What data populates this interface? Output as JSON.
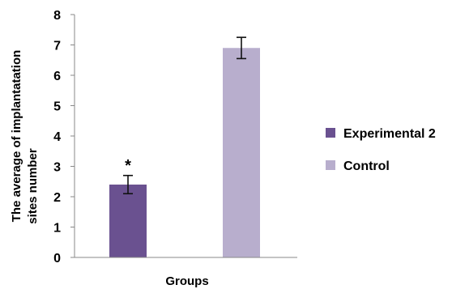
{
  "chart_data": {
    "type": "bar",
    "title": "",
    "xlabel": "Groups",
    "ylabel_line1": "The average of implantatation",
    "ylabel_line2": "sites  number",
    "ylim": [
      0,
      8
    ],
    "yticks": [
      "0",
      "1",
      "2",
      "3",
      "4",
      "5",
      "6",
      "7",
      "8"
    ],
    "grid": false,
    "legend_position": "right",
    "series": [
      {
        "name": "Experimental 2",
        "value": 2.4,
        "error": 0.3,
        "color": "#6a5190",
        "annotation": "*"
      },
      {
        "name": "Control",
        "value": 6.9,
        "error": 0.35,
        "color": "#b8aecd",
        "annotation": ""
      }
    ]
  }
}
